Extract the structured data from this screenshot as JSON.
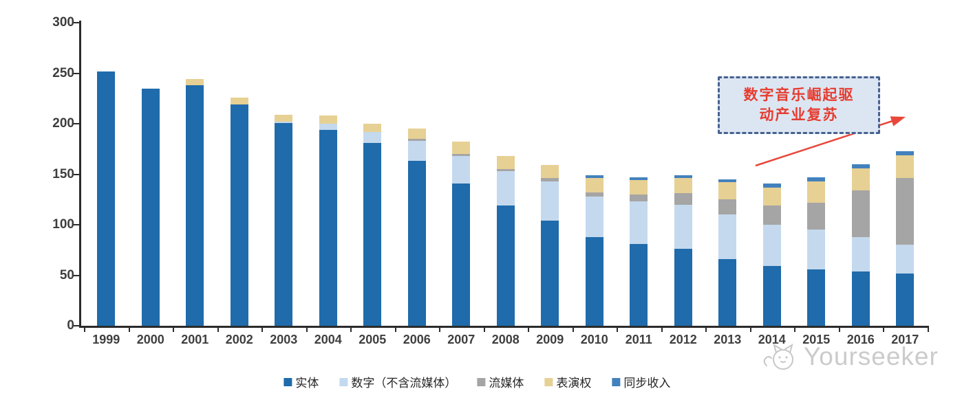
{
  "chart_data": {
    "type": "bar",
    "stacked": true,
    "title": "",
    "xlabel": "",
    "ylabel": "",
    "categories": [
      "1999",
      "2000",
      "2001",
      "2002",
      "2003",
      "2004",
      "2005",
      "2006",
      "2007",
      "2008",
      "2009",
      "2010",
      "2011",
      "2012",
      "2013",
      "2014",
      "2015",
      "2016",
      "2017"
    ],
    "series": [
      {
        "name": "实体",
        "color": "#1f6bab",
        "values": [
          252,
          235,
          238,
          219,
          201,
          194,
          181,
          163,
          141,
          119,
          104,
          88,
          81,
          76,
          66,
          59,
          56,
          54,
          52
        ]
      },
      {
        "name": "数字（不含流媒体）",
        "color": "#c4d9ee",
        "values": [
          0,
          0,
          0,
          0,
          1,
          6,
          11,
          20,
          27,
          34,
          39,
          40,
          42,
          44,
          44,
          41,
          39,
          34,
          28
        ]
      },
      {
        "name": "流媒体",
        "color": "#a5a5a5",
        "values": [
          0,
          0,
          0,
          0,
          0,
          0,
          0,
          2,
          2,
          2,
          3,
          4,
          7,
          11,
          15,
          19,
          27,
          46,
          66
        ]
      },
      {
        "name": "表演权",
        "color": "#e7d094",
        "values": [
          0,
          0,
          6,
          7,
          7,
          8,
          8,
          10,
          12,
          13,
          13,
          14,
          14,
          15,
          17,
          18,
          21,
          22,
          23
        ]
      },
      {
        "name": "同步收入",
        "color": "#4381bd",
        "values": [
          0,
          0,
          0,
          0,
          0,
          0,
          0,
          0,
          0,
          0,
          0,
          3,
          3,
          3,
          3,
          4,
          4,
          4,
          4
        ]
      }
    ],
    "totals": [
      252,
      235,
      244,
      226,
      209,
      208,
      200,
      195,
      182,
      168,
      159,
      149,
      147,
      149,
      145,
      141,
      147,
      160,
      173
    ],
    "ylim": [
      0,
      300
    ],
    "yticks": [
      0,
      50,
      100,
      150,
      200,
      250,
      300
    ],
    "grid": false,
    "legend_position": "bottom",
    "annotation": {
      "lines": [
        "数字音乐崛起驱",
        "动产业复苏"
      ],
      "text_color": "#e63c30",
      "box_fill": "#dce6f2",
      "box_border": "#46618f",
      "arrow_color": "#e8473a"
    }
  },
  "watermark": {
    "text": "Yourseeker",
    "icon": "cat-logo-icon",
    "color": "#c9c9c9"
  }
}
